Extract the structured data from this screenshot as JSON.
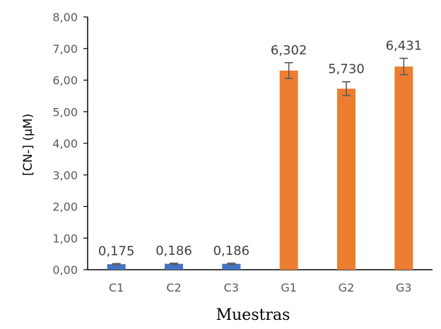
{
  "chart_data": {
    "type": "bar",
    "categories": [
      "C1",
      "C2",
      "C3",
      "G1",
      "G2",
      "G3"
    ],
    "values": [
      0.175,
      0.186,
      0.186,
      6.302,
      5.73,
      6.431
    ],
    "data_labels": [
      "0,175",
      "0,186",
      "0,186",
      "6,302",
      "5,730",
      "6,431"
    ],
    "error_bars": [
      0.02,
      0.02,
      0.02,
      0.25,
      0.22,
      0.26
    ],
    "bar_colors": [
      "#4472C4",
      "#4472C4",
      "#4472C4",
      "#ED7D31",
      "#ED7D31",
      "#ED7D31"
    ],
    "ylim": [
      0,
      8
    ],
    "y_ticks": [
      0,
      1,
      2,
      3,
      4,
      5,
      6,
      7,
      8
    ],
    "y_tick_labels": [
      "0,00",
      "1,00",
      "2,00",
      "3,00",
      "4,00",
      "5,00",
      "6,00",
      "7,00",
      "8,00"
    ],
    "xlabel": "Muestras",
    "ylabel": "[CN-] (μM)",
    "title": "",
    "grid": false,
    "legend": "none"
  }
}
